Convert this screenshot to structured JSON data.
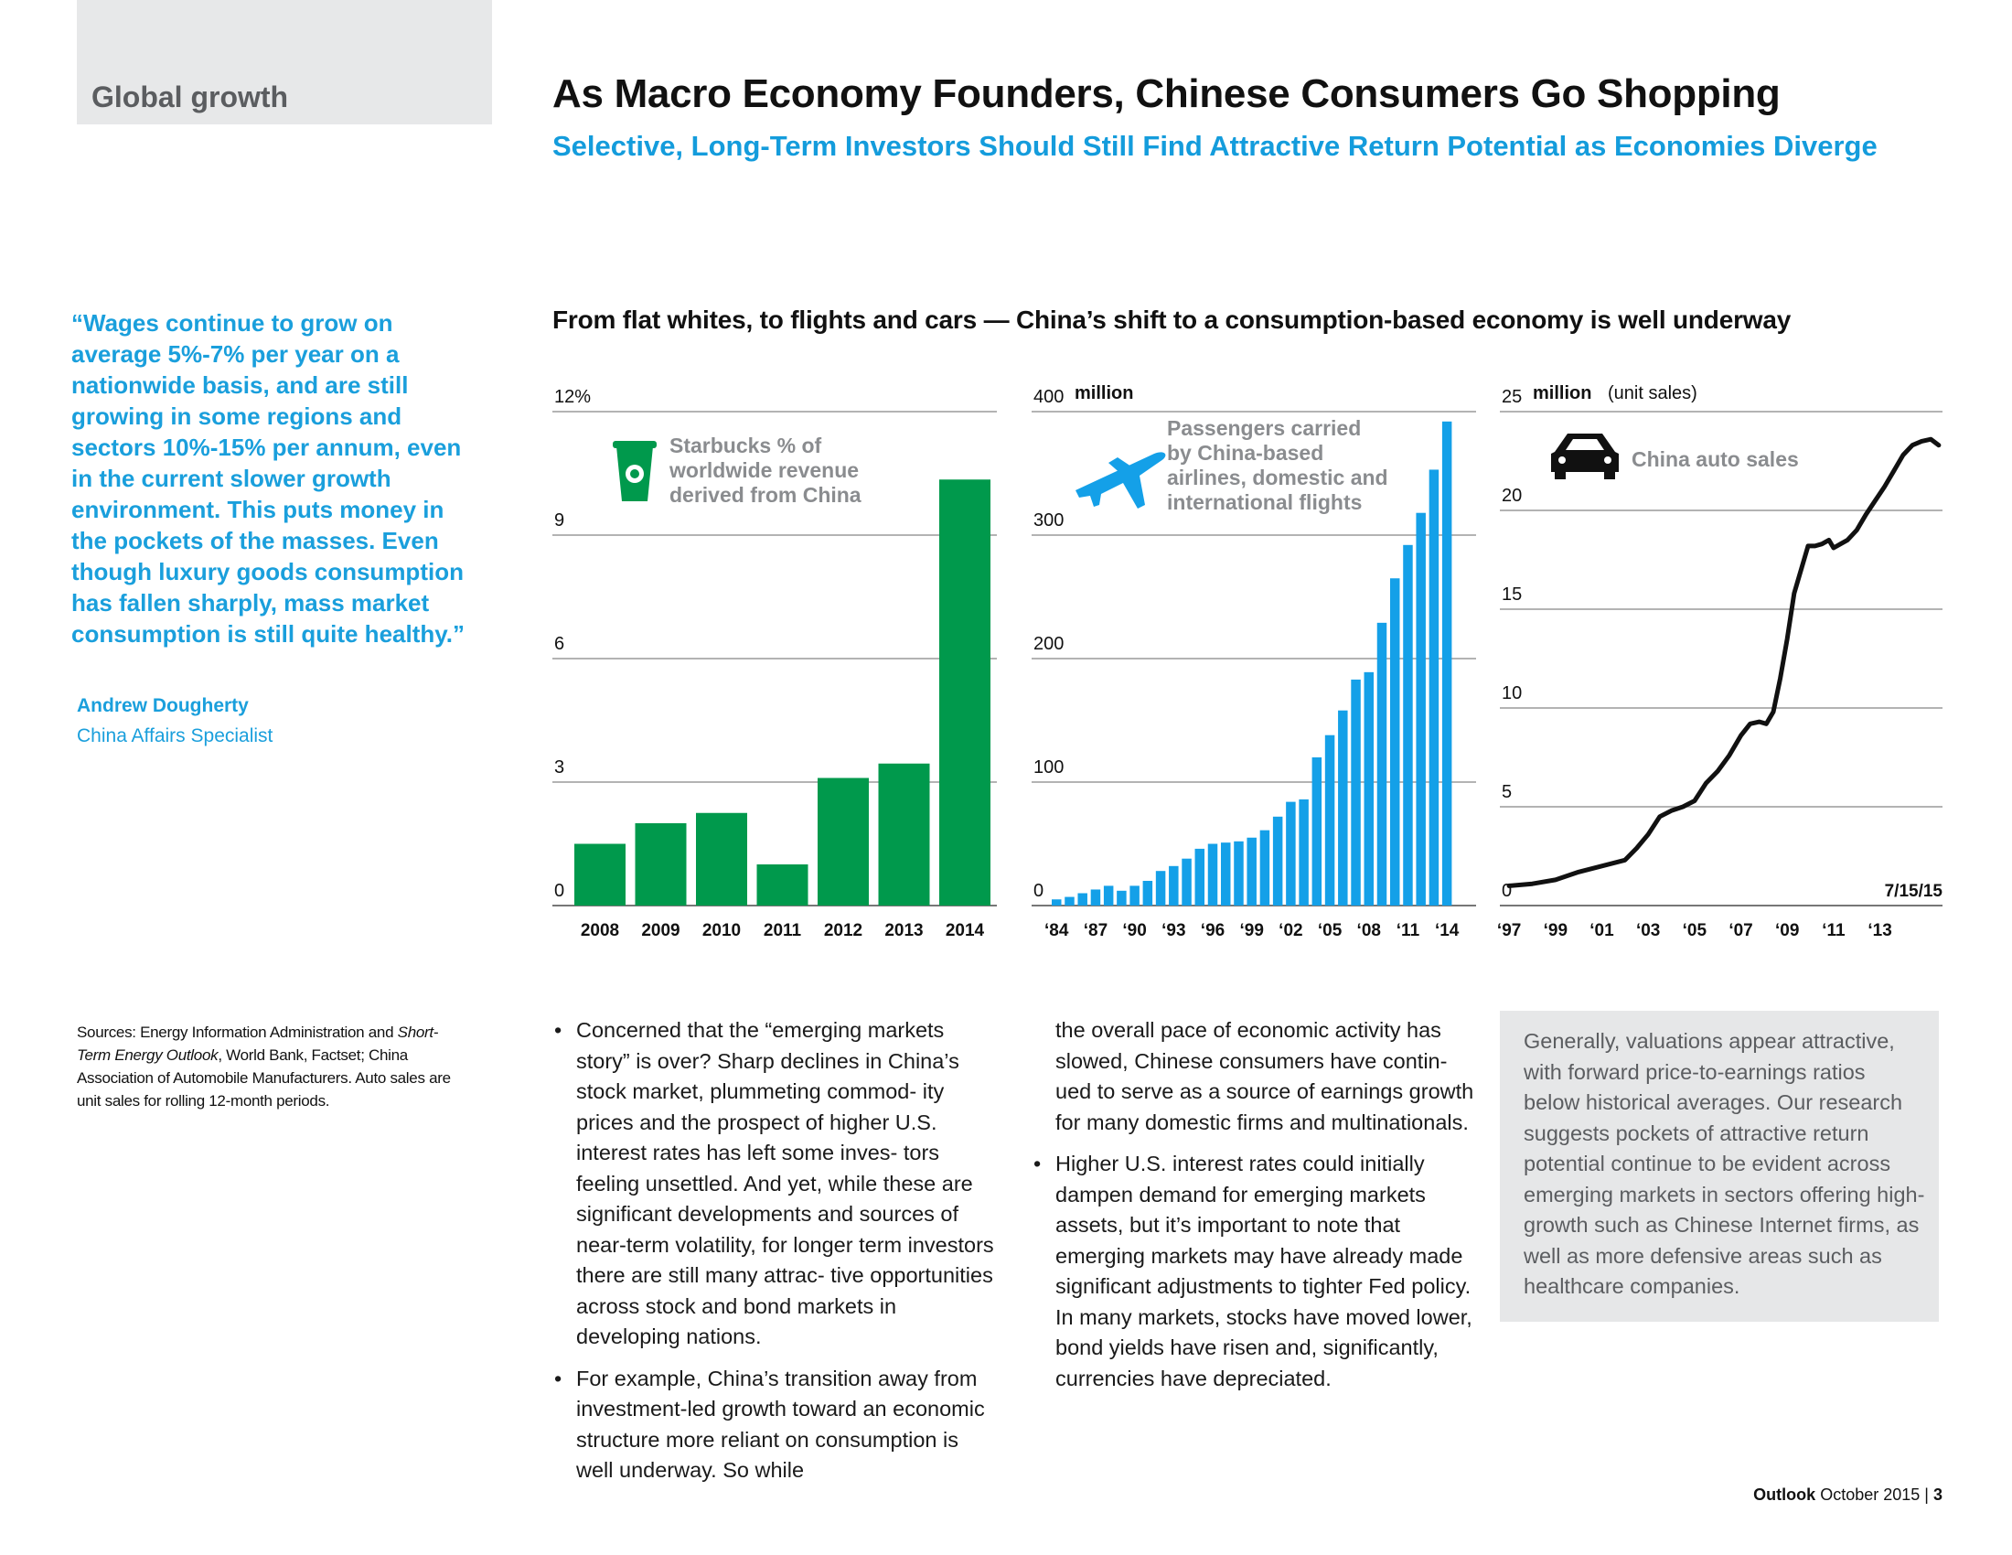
{
  "header": {
    "section": "Global growth",
    "title": "As Macro Economy Founders, Chinese Consumers Go Shopping",
    "subtitle": "Selective, Long-Term Investors Should Still Find Attractive Return Potential as Economies Diverge"
  },
  "colors": {
    "accent_blue": "#149cdc",
    "bar_green": "#00994c",
    "bar_blue": "#14a0e8",
    "tab_gray": "#e7e8e9"
  },
  "sidebar": {
    "quote": "“Wages continue to grow on average 5%-7% per year on a nationwide basis, and are still growing in some regions and sectors 10%-15% per annum, even in the current slower growth environment. This puts money in the pockets of the masses. Even though luxury goods consumption has fallen sharply, mass market consumption is still quite healthy.”",
    "author": "Andrew Dougherty",
    "role": "China Affairs Specialist",
    "sources_prefix": "Sources: Energy Information Administration and ",
    "sources_italic": "Short-Term Energy Outlook",
    "sources_suffix": ", World Bank, Factset; China Association of Automobile Manufacturers. Auto sales are unit sales for rolling 12-month periods."
  },
  "charts_heading": "From flat whites, to flights and cars — China’s shift to a consumption-based economy is well underway",
  "chart_data": [
    {
      "type": "bar",
      "title": "Starbucks % of worldwide revenue derived from China",
      "icon": "coffee-cup-icon",
      "y_unit": "%",
      "ylim": [
        0,
        12
      ],
      "yticks": [
        "0",
        "3",
        "6",
        "9",
        "12%"
      ],
      "categories": [
        "2008",
        "2009",
        "2010",
        "2011",
        "2012",
        "2013",
        "2014"
      ],
      "values": [
        1.5,
        2.0,
        2.25,
        1.0,
        3.1,
        3.45,
        10.35
      ],
      "grid": true
    },
    {
      "type": "bar",
      "title": "Passengers carried by China-based airlines, domestic and international flights",
      "icon": "airplane-icon",
      "y_unit": "million",
      "ylim": [
        0,
        400
      ],
      "yticks": [
        "0",
        "100",
        "200",
        "300",
        "400"
      ],
      "tick_labels": [
        "‘84",
        "‘87",
        "‘90",
        "‘93",
        "‘96",
        "‘99",
        "‘02",
        "‘05",
        "‘08",
        "‘11",
        "‘14"
      ],
      "categories": [
        "1984",
        "1985",
        "1986",
        "1987",
        "1988",
        "1989",
        "1990",
        "1991",
        "1992",
        "1993",
        "1994",
        "1995",
        "1996",
        "1997",
        "1998",
        "1999",
        "2000",
        "2001",
        "2002",
        "2003",
        "2004",
        "2005",
        "2006",
        "2007",
        "2008",
        "2009",
        "2010",
        "2011",
        "2012",
        "2013",
        "2014"
      ],
      "values": [
        5,
        7,
        10,
        13,
        16,
        12,
        16,
        20,
        28,
        32,
        38,
        46,
        50,
        51,
        52,
        55,
        61,
        72,
        84,
        86,
        120,
        138,
        158,
        183,
        189,
        229,
        265,
        292,
        318,
        353,
        392
      ],
      "grid": true
    },
    {
      "type": "line",
      "title": "China auto sales",
      "icon": "car-icon",
      "y_unit": "million",
      "y_unit_note": "(unit sales)",
      "ylim": [
        0,
        25
      ],
      "yticks": [
        "0",
        "5",
        "10",
        "15",
        "20",
        "25"
      ],
      "tick_labels": [
        "‘97",
        "‘99",
        "‘01",
        "‘03",
        "‘05",
        "‘07",
        "‘09",
        "‘11",
        "‘13"
      ],
      "end_label": "7/15/15",
      "x_years": [
        1997.0,
        1998.0,
        1999.0,
        2000.0,
        2001.0,
        2002.0,
        2002.5,
        2003.0,
        2003.5,
        2004.0,
        2004.5,
        2005.0,
        2005.5,
        2006.0,
        2006.5,
        2007.0,
        2007.4,
        2007.8,
        2008.1,
        2008.4,
        2008.7,
        2009.0,
        2009.3,
        2009.6,
        2009.9,
        2010.2,
        2010.5,
        2010.8,
        2011.0,
        2011.3,
        2011.6,
        2012.0,
        2012.4,
        2012.8,
        2013.2,
        2013.6,
        2014.0,
        2014.4,
        2014.8,
        2015.2,
        2015.54
      ],
      "values": [
        1.0,
        1.1,
        1.3,
        1.7,
        2.0,
        2.3,
        2.9,
        3.6,
        4.5,
        4.8,
        5.0,
        5.3,
        6.2,
        6.8,
        7.6,
        8.6,
        9.2,
        9.3,
        9.2,
        9.8,
        11.5,
        13.5,
        15.8,
        17.0,
        18.2,
        18.2,
        18.3,
        18.5,
        18.1,
        18.3,
        18.5,
        19.0,
        19.8,
        20.5,
        21.2,
        22.0,
        22.8,
        23.3,
        23.5,
        23.6,
        23.3
      ],
      "xlim": [
        1996.6,
        2015.7
      ],
      "grid": true
    }
  ],
  "body": {
    "col1": [
      "Concerned that the “emerging markets story” is over? Sharp declines in China’s stock market, plummeting commod- ity prices and the prospect of higher U.S. interest rates has left some inves- tors feeling unsettled. And yet, while these are significant developments and sources of near-term volatility, for longer term investors there are still many attrac- tive opportunities across stock and bond markets in developing nations.",
      "For example, China’s transition away from investment-led growth toward an economic structure more reliant on consumption is well underway. So while"
    ],
    "col2_continuation": "the overall pace of economic activity has slowed, Chinese consumers have contin- ued to serve as a source of earnings growth for many domestic firms and multinationals.",
    "col2_bullet": "Higher U.S. interest rates could initially dampen demand for emerging markets assets, but it’s important to note that emerging markets may have already made significant adjustments to tighter Fed policy. In many markets, stocks have moved lower, bond yields have risen and, significantly, currencies have depreciated.",
    "bullet_glyph": "•",
    "callout": "Generally, valuations appear attractive, with forward price-to-earnings ratios below historical averages. Our research suggests pockets of attractive return potential continue to be evident across emerging markets in sectors offering high-growth such as Chinese Internet firms, as well as more defensive areas such as healthcare companies."
  },
  "footer": {
    "publication": "Outlook",
    "date": "October 2015",
    "separator": "|",
    "page": "3"
  }
}
